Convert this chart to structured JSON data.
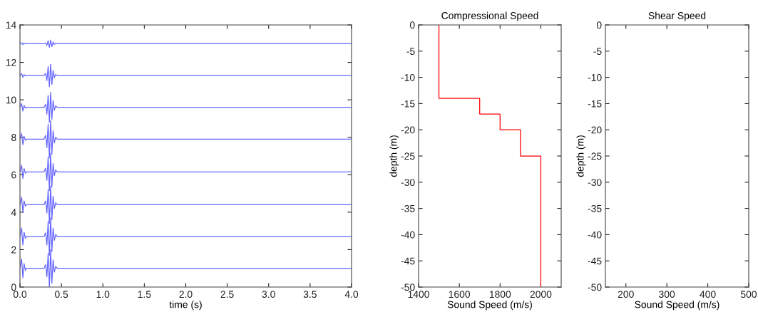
{
  "chart_data": [
    {
      "type": "line",
      "xlabel": "time (s)",
      "xlim": [
        0,
        4
      ],
      "ylim": [
        0,
        14
      ],
      "xticks": [
        {
          "value": 0,
          "label": "0.0"
        },
        {
          "value": 0.5,
          "label": "0.5"
        },
        {
          "value": 1,
          "label": "1.0"
        },
        {
          "value": 1.5,
          "label": "1.5"
        },
        {
          "value": 2,
          "label": "2.0"
        },
        {
          "value": 2.5,
          "label": "2.5"
        },
        {
          "value": 3,
          "label": "3.0"
        },
        {
          "value": 3.5,
          "label": "3.5"
        },
        {
          "value": 4,
          "label": "4.0"
        }
      ],
      "yticks": [
        0,
        2,
        4,
        6,
        8,
        10,
        12,
        14
      ],
      "x": [
        0,
        0.02,
        0.035,
        0.05,
        0.065,
        0.08,
        0.1,
        0.29,
        0.31,
        0.325,
        0.34,
        0.355,
        0.37,
        0.385,
        0.4,
        0.415,
        0.43,
        0.45,
        4.0
      ],
      "series": [
        {
          "color": "#6666ff",
          "values": [
            1,
            1.5,
            0.5,
            1.25,
            0.9,
            1,
            1,
            1,
            1.2,
            0.55,
            1.8,
            0,
            2,
            0.2,
            1.45,
            0.8,
            1.1,
            1,
            1
          ]
        },
        {
          "color": "#6666ff",
          "values": [
            2.7,
            3.15,
            2.25,
            2.93,
            2.61,
            2.7,
            2.7,
            2.7,
            2.9,
            2.25,
            3.5,
            1.7,
            3.7,
            1.9,
            3.15,
            2.5,
            2.8,
            2.7,
            2.7
          ]
        },
        {
          "color": "#6666ff",
          "values": [
            4.4,
            4.8,
            4.0,
            4.6,
            4.32,
            4.4,
            4.4,
            4.4,
            4.6,
            3.95,
            5.2,
            3.4,
            5.4,
            3.6,
            4.85,
            4.2,
            4.5,
            4.4,
            4.4
          ]
        },
        {
          "color": "#6666ff",
          "values": [
            6.15,
            6.5,
            5.8,
            6.33,
            6.08,
            6.15,
            6.15,
            6.15,
            6.35,
            5.7,
            6.95,
            5.15,
            7.15,
            5.35,
            6.6,
            5.95,
            6.25,
            6.15,
            6.15
          ]
        },
        {
          "color": "#6666ff",
          "values": [
            7.9,
            8.2,
            7.6,
            8.05,
            7.84,
            7.9,
            7.9,
            7.9,
            8.1,
            7.45,
            8.7,
            6.9,
            8.9,
            7.1,
            8.35,
            7.7,
            8.0,
            7.9,
            7.9
          ]
        },
        {
          "color": "#6666ff",
          "values": [
            9.6,
            9.8,
            9.4,
            9.7,
            9.56,
            9.6,
            9.6,
            9.6,
            9.76,
            9.24,
            10.24,
            8.8,
            10.4,
            8.96,
            9.96,
            9.44,
            9.68,
            9.6,
            9.6
          ]
        },
        {
          "color": "#6666ff",
          "values": [
            11.3,
            11.4,
            11.2,
            11.35,
            11.28,
            11.3,
            11.3,
            11.3,
            11.42,
            11.03,
            11.78,
            10.7,
            11.9,
            10.82,
            11.57,
            11.18,
            11.36,
            11.3,
            11.3
          ]
        },
        {
          "color": "#6666ff",
          "values": [
            13,
            13.05,
            12.95,
            13.03,
            12.99,
            13,
            13,
            13,
            13.04,
            12.91,
            13.16,
            12.8,
            13.2,
            12.84,
            13.09,
            12.96,
            13.02,
            13,
            13
          ]
        }
      ]
    },
    {
      "type": "line",
      "title": "Compressional Speed",
      "xlabel": "Sound Speed (m/s)",
      "ylabel": "depth (m)",
      "xlim": [
        1400,
        2100
      ],
      "ylim": [
        -50,
        0
      ],
      "xticks": [
        1400,
        1600,
        1800,
        2000
      ],
      "yticks": [
        -50,
        -45,
        -40,
        -35,
        -30,
        -25,
        -20,
        -15,
        -10,
        -5,
        0
      ],
      "series": [
        {
          "color": "#ff0000",
          "x": [
            1500,
            1500,
            1700,
            1700,
            1800,
            1800,
            1900,
            1900,
            2000,
            2000
          ],
          "values": [
            0,
            -14,
            -14,
            -17,
            -17,
            -20,
            -20,
            -25,
            -25,
            -50
          ]
        }
      ]
    },
    {
      "type": "line",
      "title": "Shear Speed",
      "xlabel": "Sound Speed (m/s)",
      "ylabel": "depth (m)",
      "xlim": [
        150,
        500
      ],
      "ylim": [
        -50,
        0
      ],
      "xticks": [
        200,
        300,
        400,
        500
      ],
      "yticks": [
        -50,
        -45,
        -40,
        -35,
        -30,
        -25,
        -20,
        -15,
        -10,
        -5,
        0
      ]
    }
  ]
}
